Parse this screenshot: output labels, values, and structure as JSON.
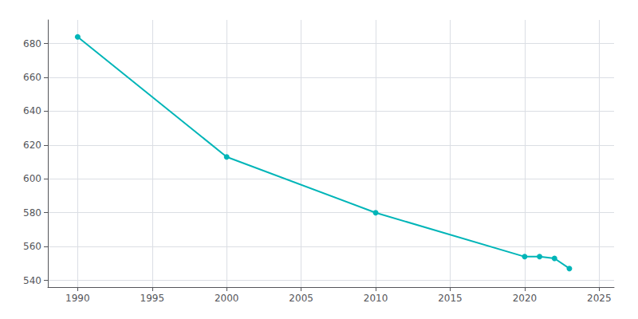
{
  "chart_data": {
    "type": "line",
    "x": [
      1990,
      2000,
      2010,
      2020,
      2021,
      2022,
      2023
    ],
    "values": [
      684,
      613,
      580,
      554,
      554,
      553,
      547
    ],
    "color": "#00B5B8",
    "marker": "circle",
    "xlim": [
      1988,
      2026
    ],
    "xticks": [
      1990,
      1995,
      2000,
      2005,
      2010,
      2015,
      2020,
      2025
    ],
    "ylim": [
      536,
      694
    ],
    "yticks": [
      540,
      560,
      580,
      600,
      620,
      640,
      660,
      680
    ],
    "grid": true
  }
}
